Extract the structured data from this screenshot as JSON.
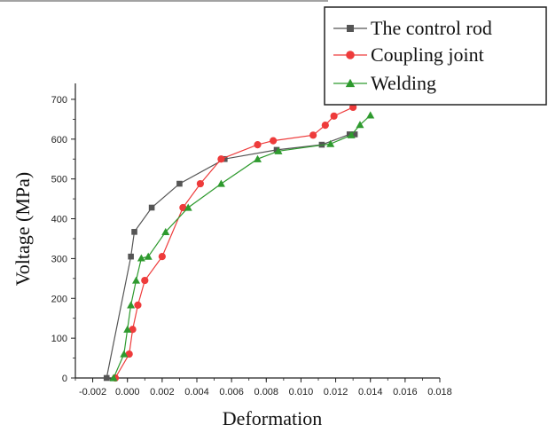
{
  "chart_data": {
    "type": "line",
    "xlabel": "Deformation",
    "ylabel": "Voltage (MPa)",
    "xlim": [
      -0.003,
      0.018
    ],
    "ylim": [
      0,
      740
    ],
    "x_ticks": [
      "-0.002",
      "0.000",
      "0.002",
      "0.004",
      "0.006",
      "0.008",
      "0.010",
      "0.012",
      "0.014",
      "0.016",
      "0.018"
    ],
    "x_tick_values": [
      -0.002,
      0.0,
      0.002,
      0.004,
      0.006,
      0.008,
      0.01,
      0.012,
      0.014,
      0.016,
      0.018
    ],
    "y_ticks": [
      "0",
      "100",
      "200",
      "300",
      "400",
      "500",
      "600",
      "700"
    ],
    "y_tick_values": [
      0,
      100,
      200,
      300,
      400,
      500,
      600,
      700
    ],
    "grid": false,
    "legend_position": "top-right",
    "series": [
      {
        "name": "The control rod",
        "color": "#555555",
        "marker": "square",
        "points": [
          [
            -0.0012,
            0
          ],
          [
            0.0002,
            305
          ],
          [
            0.0004,
            367
          ],
          [
            0.0014,
            428
          ],
          [
            0.003,
            488
          ],
          [
            0.0056,
            550
          ],
          [
            0.0086,
            573
          ],
          [
            0.0112,
            586
          ],
          [
            0.0128,
            612
          ],
          [
            0.0131,
            612
          ]
        ]
      },
      {
        "name": "Coupling joint",
        "color": "#ee3b3b",
        "marker": "circle",
        "points": [
          [
            -0.0007,
            0
          ],
          [
            0.0001,
            60
          ],
          [
            0.0003,
            122
          ],
          [
            0.0006,
            183
          ],
          [
            0.001,
            245
          ],
          [
            0.002,
            305
          ],
          [
            0.0032,
            428
          ],
          [
            0.0042,
            488
          ],
          [
            0.0054,
            550
          ],
          [
            0.0075,
            586
          ],
          [
            0.0084,
            596
          ],
          [
            0.0107,
            610
          ],
          [
            0.0114,
            635
          ],
          [
            0.0119,
            658
          ],
          [
            0.013,
            680
          ]
        ]
      },
      {
        "name": "Welding",
        "color": "#2e9a2e",
        "marker": "triangle",
        "points": [
          [
            -0.0008,
            0
          ],
          [
            -0.0002,
            60
          ],
          [
            0.0,
            122
          ],
          [
            0.0002,
            183
          ],
          [
            0.0005,
            245
          ],
          [
            0.0008,
            301
          ],
          [
            0.0012,
            305
          ],
          [
            0.0022,
            367
          ],
          [
            0.0035,
            428
          ],
          [
            0.0054,
            488
          ],
          [
            0.0075,
            550
          ],
          [
            0.0087,
            570
          ],
          [
            0.0117,
            588
          ],
          [
            0.0129,
            610
          ],
          [
            0.0134,
            636
          ],
          [
            0.014,
            660
          ]
        ]
      }
    ]
  }
}
